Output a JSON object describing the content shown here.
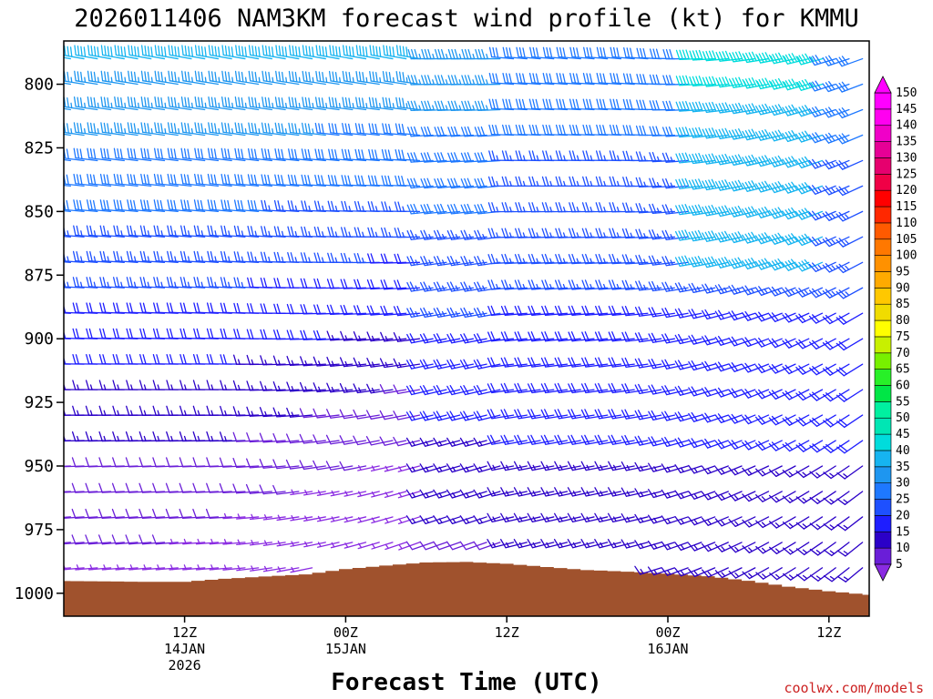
{
  "chart_data": {
    "type": "wind-barb-profile",
    "title": "2026011406 NAM3KM forecast wind profile (kt) for KMMU",
    "xlabel": "Forecast Time (UTC)",
    "ylabel": "",
    "y_unit": "hPa",
    "y_range": [
      1009,
      783
    ],
    "y_ticks": [
      800,
      825,
      850,
      875,
      900,
      925,
      950,
      975,
      1000
    ],
    "x_range_hours": [
      -3,
      57
    ],
    "x_ticks": [
      {
        "hour": 6,
        "lines": [
          "12Z",
          "14JAN",
          "2026"
        ]
      },
      {
        "hour": 18,
        "lines": [
          "00Z",
          "15JAN"
        ]
      },
      {
        "hour": 30,
        "lines": [
          "12Z"
        ]
      },
      {
        "hour": 42,
        "lines": [
          "00Z",
          "16JAN"
        ]
      },
      {
        "hour": 54,
        "lines": [
          "12Z"
        ]
      }
    ],
    "levels_hpa": [
      790,
      800,
      810,
      820,
      830,
      840,
      850,
      860,
      870,
      880,
      890,
      900,
      910,
      920,
      930,
      940,
      950,
      960,
      970,
      980,
      990
    ],
    "colorbar": {
      "levels": [
        5,
        10,
        15,
        20,
        25,
        30,
        35,
        40,
        45,
        50,
        55,
        60,
        65,
        70,
        75,
        80,
        85,
        90,
        95,
        100,
        105,
        110,
        115,
        120,
        125,
        130,
        135,
        140,
        145,
        150
      ],
      "colors": [
        "#8a2be2",
        "#6a1ed8",
        "#2b00c8",
        "#1e1eff",
        "#1e50ff",
        "#1e78ff",
        "#1e96f0",
        "#16b4f0",
        "#00dcdc",
        "#00e6b4",
        "#00f0a0",
        "#00e646",
        "#28f028",
        "#78f000",
        "#c8f000",
        "#ffff00",
        "#f0dc00",
        "#ffc800",
        "#ffaa00",
        "#ff9100",
        "#ff7800",
        "#ff5a00",
        "#ff2800",
        "#ff0000",
        "#f00046",
        "#e6006e",
        "#e60096",
        "#f000c8",
        "#ff00f0",
        "#ff00ff"
      ]
    },
    "terrain": {
      "hours": [
        -3,
        0,
        3,
        6,
        9,
        12,
        15,
        18,
        21,
        24,
        27,
        30,
        33,
        36,
        39,
        42,
        45,
        48,
        51,
        54,
        57
      ],
      "surface_pressure_hpa": [
        995.2,
        995.3,
        995.5,
        995.5,
        994.3,
        993.4,
        992.6,
        990.5,
        989.1,
        987.9,
        987.7,
        988.4,
        989.7,
        990.9,
        991.5,
        992.3,
        993.3,
        995.1,
        997.4,
        999.2,
        1000.6
      ]
    },
    "barb_rules": {
      "half_barb_kt": 5,
      "full_barb_kt": 10,
      "pennant_kt": 50
    },
    "time_steps": "hourly"
  },
  "credit": "coolwx.com/models"
}
